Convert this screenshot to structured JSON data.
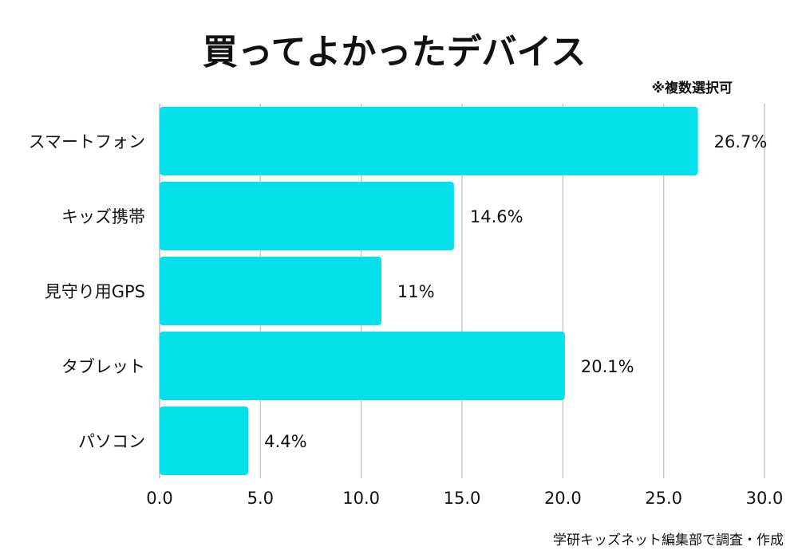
{
  "chart_data": {
    "type": "bar",
    "orientation": "horizontal",
    "title": "買ってよかったデバイス",
    "note": "※複数選択可",
    "categories": [
      "スマートフォン",
      "キッズ携帯",
      "見守り用GPS",
      "タブレット",
      "パソコン"
    ],
    "values": [
      26.7,
      14.6,
      11,
      20.1,
      4.4
    ],
    "value_labels": [
      "26.7%",
      "14.6%",
      "11%",
      "20.1%",
      "4.4%"
    ],
    "xlim": [
      0,
      30
    ],
    "xticks": [
      "0.0",
      "5.0",
      "10.0",
      "15.0",
      "20.0",
      "25.0",
      "30.0"
    ],
    "xlabel": "",
    "ylabel": "",
    "grid": true,
    "bar_color": "#06E0EA",
    "source": "学研キッズネット編集部で調査・作成"
  }
}
